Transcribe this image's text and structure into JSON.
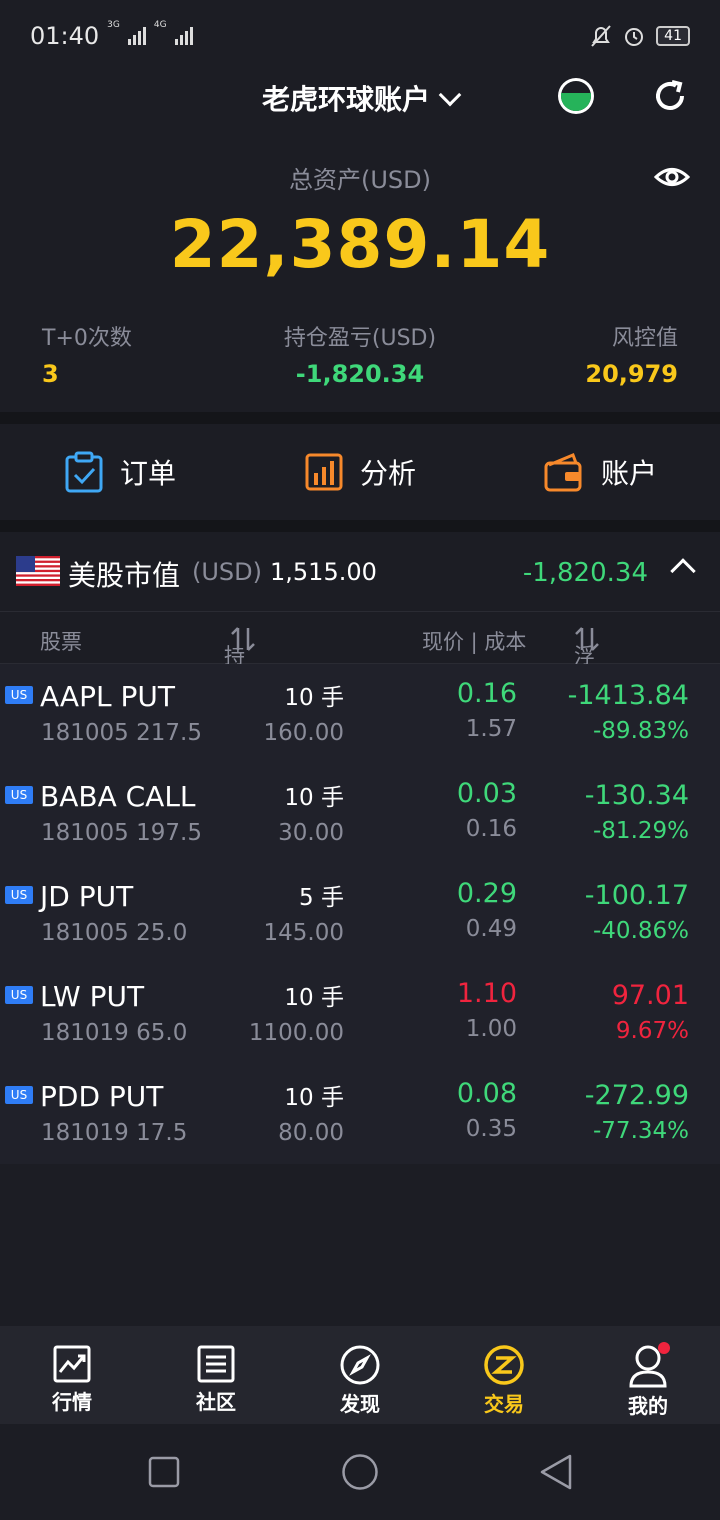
{
  "status_bar": {
    "time": "01:40",
    "network_1": "3G",
    "network_2": "4G",
    "battery": "41"
  },
  "header": {
    "account_title": "老虎环球账户"
  },
  "summary": {
    "total_assets_label": "总资产(USD)",
    "total_assets_value": "22,389.14",
    "t0_label": "T+0次数",
    "t0_value": "3",
    "position_pnl_label": "持仓盈亏(USD)",
    "position_pnl_value": "-1,820.34",
    "risk_label": "风控值",
    "risk_value": "20,979"
  },
  "actions": [
    {
      "label": "订单",
      "icon": "order-icon"
    },
    {
      "label": "分析",
      "icon": "analysis-icon"
    },
    {
      "label": "账户",
      "icon": "wallet-icon"
    }
  ],
  "market": {
    "title": "美股市值",
    "currency": "(USD)",
    "value": "1,515.00",
    "pnl": "-1,820.34"
  },
  "columns": {
    "stock": "股票",
    "position": "持仓 | 市值",
    "price": "现价 | 成本",
    "pnl": "浮动盈亏"
  },
  "positions": [
    {
      "badge": "US",
      "symbol": "AAPL PUT",
      "detail": "181005 217.5",
      "qty": "10 手",
      "market_value": "160.00",
      "price": "0.16",
      "cost": "1.57",
      "pnl": "-1413.84",
      "pnl_pct": "-89.83%",
      "trend": "down"
    },
    {
      "badge": "US",
      "symbol": "BABA CALL",
      "detail": "181005 197.5",
      "qty": "10 手",
      "market_value": "30.00",
      "price": "0.03",
      "cost": "0.16",
      "pnl": "-130.34",
      "pnl_pct": "-81.29%",
      "trend": "down"
    },
    {
      "badge": "US",
      "symbol": "JD PUT",
      "detail": "181005 25.0",
      "qty": "5 手",
      "market_value": "145.00",
      "price": "0.29",
      "cost": "0.49",
      "pnl": "-100.17",
      "pnl_pct": "-40.86%",
      "trend": "down"
    },
    {
      "badge": "US",
      "symbol": "LW PUT",
      "detail": "181019 65.0",
      "qty": "10 手",
      "market_value": "1100.00",
      "price": "1.10",
      "cost": "1.00",
      "pnl": "97.01",
      "pnl_pct": "9.67%",
      "trend": "up"
    },
    {
      "badge": "US",
      "symbol": "PDD PUT",
      "detail": "181019 17.5",
      "qty": "10 手",
      "market_value": "80.00",
      "price": "0.08",
      "cost": "0.35",
      "pnl": "-272.99",
      "pnl_pct": "-77.34%",
      "trend": "down"
    }
  ],
  "tabbar": [
    {
      "label": "行情",
      "icon": "market-chart-icon",
      "active": false
    },
    {
      "label": "社区",
      "icon": "community-icon",
      "active": false
    },
    {
      "label": "发现",
      "icon": "compass-icon",
      "active": false
    },
    {
      "label": "交易",
      "icon": "trade-icon",
      "active": true
    },
    {
      "label": "我的",
      "icon": "profile-icon",
      "active": false
    }
  ],
  "colors": {
    "accent_yellow": "#f9c81b",
    "gain_red": "#f0243e",
    "loss_green": "#3fd87a",
    "background": "#1c1d24"
  }
}
